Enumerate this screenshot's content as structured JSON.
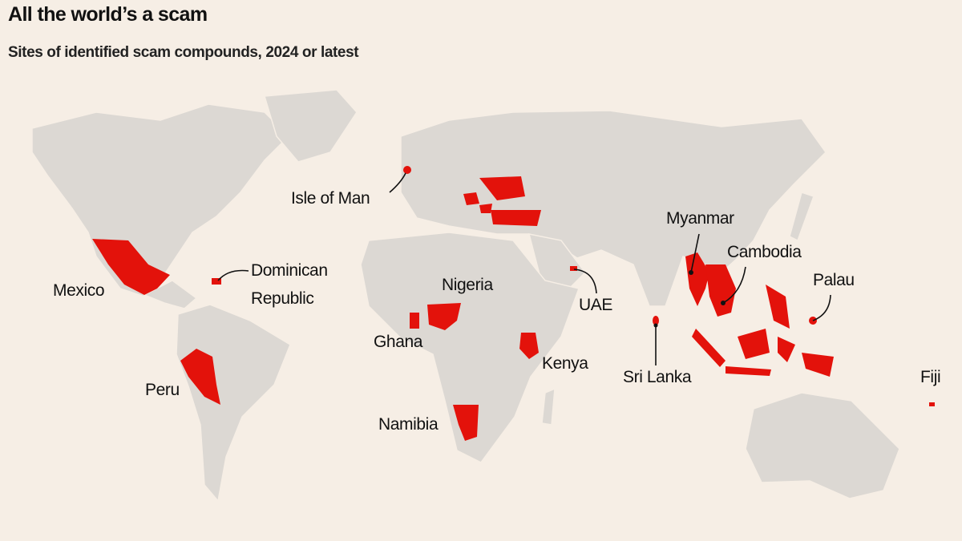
{
  "header": {
    "title": "All the world’s a scam",
    "subtitle": "Sites of identified scam compounds, 2024 or latest"
  },
  "map": {
    "labels": [
      "Isle of Man",
      "Mexico",
      "Dominican Republic",
      "Peru",
      "Ghana",
      "Nigeria",
      "Namibia",
      "Kenya",
      "UAE",
      "Sri Lanka",
      "Myanmar",
      "Cambodia",
      "Palau",
      "Fiji"
    ]
  }
}
